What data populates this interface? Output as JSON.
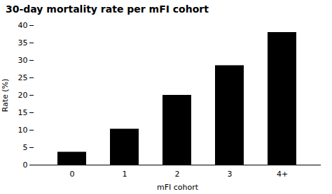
{
  "chart_data": {
    "type": "bar",
    "title": "30-day mortality rate per mFI cohort",
    "xlabel": "mFI cohort",
    "ylabel": "Rate (%)",
    "categories": [
      "0",
      "1",
      "2",
      "3",
      "4+"
    ],
    "values": [
      3.7,
      10.3,
      20.0,
      28.5,
      38.0
    ],
    "ylim": [
      0,
      40
    ],
    "yticks": [
      0,
      5,
      10,
      15,
      20,
      25,
      30,
      35,
      40
    ],
    "grid": false
  }
}
